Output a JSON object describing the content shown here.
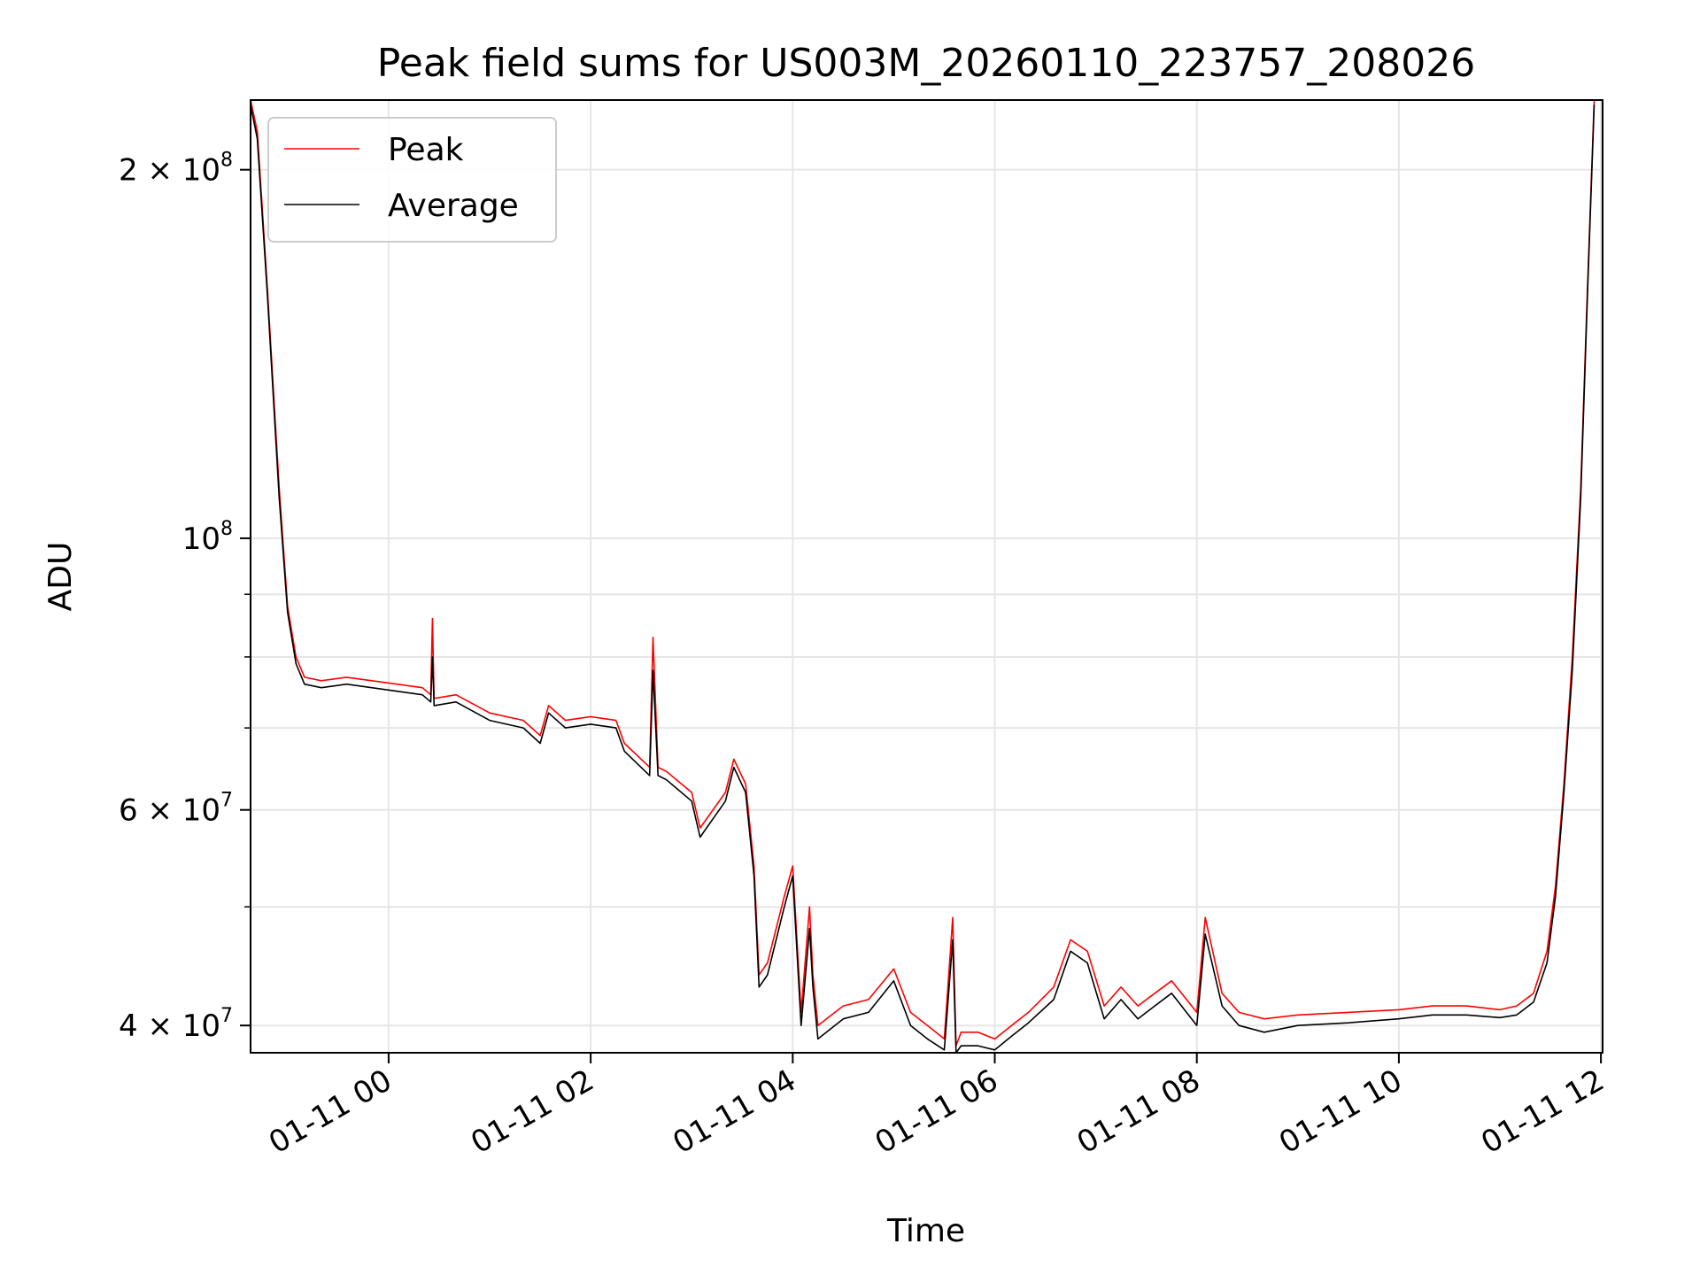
{
  "chart_data": {
    "type": "line",
    "title": "Peak field sums for US003M_20260110_223757_208026",
    "xlabel": "Time",
    "ylabel": "ADU",
    "x_axis": "datetime",
    "xlim": [
      "2026-01-10T22:38",
      "2026-01-11T12:01"
    ],
    "ylim": [
      38000000,
      228000000
    ],
    "y_scale": "log",
    "grid": true,
    "legend_position": "upper-left",
    "x_ticks": [
      {
        "value": "2026-01-11T00:00",
        "label": "01-11 00"
      },
      {
        "value": "2026-01-11T02:00",
        "label": "01-11 02"
      },
      {
        "value": "2026-01-11T04:00",
        "label": "01-11 04"
      },
      {
        "value": "2026-01-11T06:00",
        "label": "01-11 06"
      },
      {
        "value": "2026-01-11T08:00",
        "label": "01-11 08"
      },
      {
        "value": "2026-01-11T10:00",
        "label": "01-11 10"
      },
      {
        "value": "2026-01-11T12:00",
        "label": "01-11 12"
      }
    ],
    "y_ticks": [
      {
        "value": 40000000,
        "base": "4 × 10",
        "exp": "7"
      },
      {
        "value": 60000000,
        "base": "6 × 10",
        "exp": "7"
      },
      {
        "value": 100000000,
        "base": "10",
        "exp": "8"
      },
      {
        "value": 200000000,
        "base": "2 × 10",
        "exp": "8"
      }
    ],
    "y_minor_ticks": [
      50000000,
      70000000,
      80000000,
      90000000
    ],
    "series": [
      {
        "name": "Peak",
        "color": "#ff0000",
        "x": [
          "2026-01-10T22:38",
          "2026-01-10T22:42",
          "2026-01-10T22:48",
          "2026-01-10T22:55",
          "2026-01-10T23:00",
          "2026-01-10T23:05",
          "2026-01-10T23:10",
          "2026-01-10T23:20",
          "2026-01-10T23:35",
          "2026-01-10T23:50",
          "2026-01-11T00:05",
          "2026-01-11T00:20",
          "2026-01-11T00:25",
          "2026-01-11T00:26",
          "2026-01-11T00:27",
          "2026-01-11T00:40",
          "2026-01-11T01:00",
          "2026-01-11T01:20",
          "2026-01-11T01:30",
          "2026-01-11T01:35",
          "2026-01-11T01:45",
          "2026-01-11T02:00",
          "2026-01-11T02:15",
          "2026-01-11T02:20",
          "2026-01-11T02:35",
          "2026-01-11T02:37",
          "2026-01-11T02:40",
          "2026-01-11T02:45",
          "2026-01-11T03:00",
          "2026-01-11T03:05",
          "2026-01-11T03:20",
          "2026-01-11T03:25",
          "2026-01-11T03:32",
          "2026-01-11T03:37",
          "2026-01-11T03:40",
          "2026-01-11T03:45",
          "2026-01-11T03:55",
          "2026-01-11T04:00",
          "2026-01-11T04:05",
          "2026-01-11T04:10",
          "2026-01-11T04:12",
          "2026-01-11T04:15",
          "2026-01-11T04:20",
          "2026-01-11T04:30",
          "2026-01-11T04:45",
          "2026-01-11T05:00",
          "2026-01-11T05:10",
          "2026-01-11T05:20",
          "2026-01-11T05:30",
          "2026-01-11T05:35",
          "2026-01-11T05:37",
          "2026-01-11T05:40",
          "2026-01-11T05:50",
          "2026-01-11T06:00",
          "2026-01-11T06:10",
          "2026-01-11T06:20",
          "2026-01-11T06:35",
          "2026-01-11T06:45",
          "2026-01-11T06:55",
          "2026-01-11T07:05",
          "2026-01-11T07:15",
          "2026-01-11T07:25",
          "2026-01-11T07:35",
          "2026-01-11T07:45",
          "2026-01-11T08:00",
          "2026-01-11T08:05",
          "2026-01-11T08:15",
          "2026-01-11T08:25",
          "2026-01-11T08:40",
          "2026-01-11T09:00",
          "2026-01-11T09:30",
          "2026-01-11T10:00",
          "2026-01-11T10:20",
          "2026-01-11T10:40",
          "2026-01-11T11:00",
          "2026-01-11T11:10",
          "2026-01-11T11:20",
          "2026-01-11T11:28",
          "2026-01-11T11:33",
          "2026-01-11T11:38",
          "2026-01-11T11:43",
          "2026-01-11T11:48",
          "2026-01-11T11:52",
          "2026-01-11T11:56"
        ],
        "y": [
          228000000,
          215000000,
          160000000,
          110000000,
          88000000,
          80000000,
          77000000,
          76500000,
          77000000,
          76500000,
          76000000,
          75500000,
          74500000,
          86000000,
          74000000,
          74500000,
          72000000,
          71000000,
          69000000,
          73000000,
          71000000,
          71500000,
          71000000,
          68000000,
          65000000,
          83000000,
          65000000,
          64500000,
          62000000,
          58000000,
          62000000,
          66000000,
          63000000,
          54000000,
          44000000,
          45000000,
          51000000,
          54000000,
          41000000,
          50000000,
          44000000,
          40000000,
          40500000,
          41500000,
          42000000,
          44500000,
          41000000,
          40000000,
          39000000,
          49000000,
          38500000,
          39500000,
          39500000,
          39000000,
          40000000,
          41000000,
          43000000,
          47000000,
          46000000,
          41500000,
          43000000,
          41500000,
          42500000,
          43500000,
          41000000,
          49000000,
          42500000,
          41000000,
          40500000,
          40800000,
          41000000,
          41200000,
          41500000,
          41500000,
          41200000,
          41500000,
          42500000,
          46000000,
          52000000,
          63000000,
          80000000,
          110000000,
          160000000,
          228000000
        ]
      },
      {
        "name": "Average",
        "color": "#000000",
        "x": [
          "2026-01-10T22:38",
          "2026-01-10T22:42",
          "2026-01-10T22:48",
          "2026-01-10T22:55",
          "2026-01-10T23:00",
          "2026-01-10T23:05",
          "2026-01-10T23:10",
          "2026-01-10T23:20",
          "2026-01-10T23:35",
          "2026-01-10T23:50",
          "2026-01-11T00:05",
          "2026-01-11T00:20",
          "2026-01-11T00:25",
          "2026-01-11T00:26",
          "2026-01-11T00:27",
          "2026-01-11T00:40",
          "2026-01-11T01:00",
          "2026-01-11T01:20",
          "2026-01-11T01:30",
          "2026-01-11T01:35",
          "2026-01-11T01:45",
          "2026-01-11T02:00",
          "2026-01-11T02:15",
          "2026-01-11T02:20",
          "2026-01-11T02:35",
          "2026-01-11T02:37",
          "2026-01-11T02:40",
          "2026-01-11T02:45",
          "2026-01-11T03:00",
          "2026-01-11T03:05",
          "2026-01-11T03:20",
          "2026-01-11T03:25",
          "2026-01-11T03:32",
          "2026-01-11T03:37",
          "2026-01-11T03:40",
          "2026-01-11T03:45",
          "2026-01-11T03:55",
          "2026-01-11T04:00",
          "2026-01-11T04:05",
          "2026-01-11T04:10",
          "2026-01-11T04:12",
          "2026-01-11T04:15",
          "2026-01-11T04:20",
          "2026-01-11T04:30",
          "2026-01-11T04:45",
          "2026-01-11T05:00",
          "2026-01-11T05:10",
          "2026-01-11T05:20",
          "2026-01-11T05:30",
          "2026-01-11T05:35",
          "2026-01-11T05:37",
          "2026-01-11T05:40",
          "2026-01-11T05:50",
          "2026-01-11T06:00",
          "2026-01-11T06:10",
          "2026-01-11T06:20",
          "2026-01-11T06:35",
          "2026-01-11T06:45",
          "2026-01-11T06:55",
          "2026-01-11T07:05",
          "2026-01-11T07:15",
          "2026-01-11T07:25",
          "2026-01-11T07:35",
          "2026-01-11T07:45",
          "2026-01-11T08:00",
          "2026-01-11T08:05",
          "2026-01-11T08:15",
          "2026-01-11T08:25",
          "2026-01-11T08:40",
          "2026-01-11T09:00",
          "2026-01-11T09:30",
          "2026-01-11T10:00",
          "2026-01-11T10:20",
          "2026-01-11T10:40",
          "2026-01-11T11:00",
          "2026-01-11T11:10",
          "2026-01-11T11:20",
          "2026-01-11T11:28",
          "2026-01-11T11:33",
          "2026-01-11T11:38",
          "2026-01-11T11:43",
          "2026-01-11T11:48",
          "2026-01-11T11:52",
          "2026-01-11T11:56"
        ],
        "y": [
          226000000,
          212000000,
          158000000,
          108000000,
          87000000,
          79000000,
          76000000,
          75500000,
          76000000,
          75500000,
          75000000,
          74500000,
          73500000,
          80000000,
          73000000,
          73500000,
          71000000,
          70000000,
          68000000,
          72000000,
          70000000,
          70500000,
          70000000,
          67000000,
          64000000,
          78000000,
          64000000,
          63500000,
          61000000,
          57000000,
          61000000,
          65000000,
          62000000,
          53000000,
          43000000,
          44000000,
          50000000,
          53000000,
          40000000,
          48000000,
          43000000,
          39000000,
          39500000,
          40500000,
          41000000,
          43500000,
          40000000,
          39000000,
          38200000,
          47000000,
          38000000,
          38500000,
          38500000,
          38200000,
          39200000,
          40200000,
          42000000,
          46000000,
          45000000,
          40500000,
          42000000,
          40500000,
          41500000,
          42500000,
          40000000,
          47500000,
          41500000,
          40000000,
          39500000,
          40000000,
          40200000,
          40500000,
          40800000,
          40800000,
          40600000,
          40800000,
          41800000,
          45000000,
          51000000,
          62000000,
          78000000,
          108000000,
          158000000,
          226000000
        ]
      }
    ]
  }
}
